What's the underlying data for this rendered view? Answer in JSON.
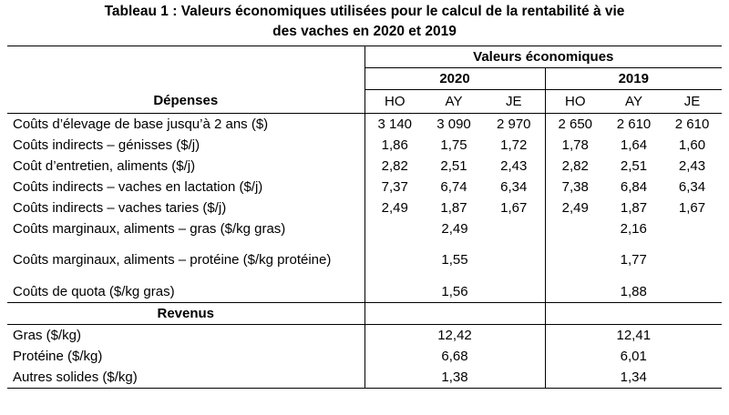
{
  "title": {
    "line1": "Tableau 1 : Valeurs économiques utilisées pour le calcul de la rentabilité à vie",
    "line2": "des vaches en 2020 et 2019"
  },
  "header": {
    "group": "Valeurs économiques",
    "years": [
      "2020",
      "2019"
    ],
    "depenses": "Dépenses",
    "breeds": [
      "HO",
      "AY",
      "JE",
      "HO",
      "AY",
      "JE"
    ]
  },
  "rows_per_breed": [
    {
      "label": "Coûts d’élevage de base jusqu’à 2 ans ($)",
      "values": [
        "3 140",
        "3 090",
        "2 970",
        "2 650",
        "2 610",
        "2 610"
      ]
    },
    {
      "label": "Coûts indirects – génisses ($/j)",
      "values": [
        "1,86",
        "1,75",
        "1,72",
        "1,78",
        "1,64",
        "1,60"
      ]
    },
    {
      "label": "Coût d’entretien, aliments ($/j)",
      "values": [
        "2,82",
        "2,51",
        "2,43",
        "2,82",
        "2,51",
        "2,43"
      ]
    },
    {
      "label": "Coûts indirects – vaches en lactation ($/j)",
      "values": [
        "7,37",
        "6,74",
        "6,34",
        "7,38",
        "6,84",
        "6,34"
      ]
    },
    {
      "label": "Coûts indirects – vaches taries ($/j)",
      "values": [
        "2,49",
        "1,87",
        "1,67",
        "2,49",
        "1,87",
        "1,67"
      ]
    }
  ],
  "rows_single": [
    {
      "label": "Coûts marginaux, aliments – gras ($/kg gras)",
      "v2020": "2,49",
      "v2019": "2,16"
    },
    {
      "label": "Coûts marginaux,  aliments – protéine ($/kg protéine)",
      "v2020": "1,55",
      "v2019": "1,77"
    },
    {
      "label": "Coûts de quota ($/kg gras)",
      "v2020": "1,56",
      "v2019": "1,88"
    }
  ],
  "revenus": {
    "heading": "Revenus",
    "rows": [
      {
        "label": "Gras ($/kg)",
        "v2020": "12,42",
        "v2019": "12,41"
      },
      {
        "label": "Protéine ($/kg)",
        "v2020": "6,68",
        "v2019": "6,01"
      },
      {
        "label": "Autres solides ($/kg)",
        "v2020": "1,38",
        "v2019": "1,34"
      }
    ]
  }
}
